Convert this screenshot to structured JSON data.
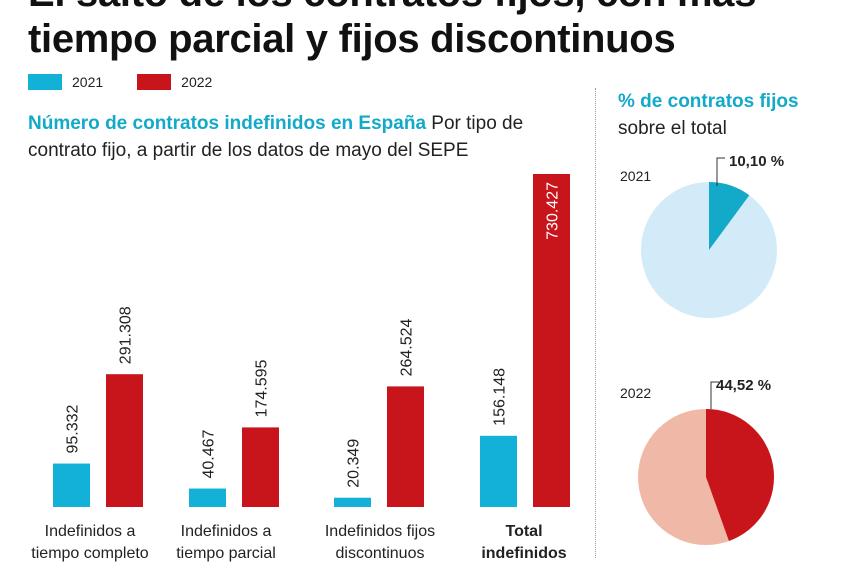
{
  "title": "El salto de los contratos fijos, con más tiempo parcial y fijos discontinuos",
  "title_line1": "El salto de los contratos fijos, con más",
  "title_line2": "tiempo parcial y fijos discontinuos",
  "colors": {
    "y2021": "#13b0d8",
    "y2022": "#c8151b",
    "pie2021_bg": "#d3ebf8",
    "pie2022_bg": "#f0b9a7",
    "accent": "#13a9c9"
  },
  "chart_data": [
    {
      "type": "bar",
      "title": "Número de contratos indefinidos en España",
      "subtitle": "Por tipo de contrato fijo, a partir de los datos de mayo del SEPE",
      "categories": [
        "Indefinidos a tiempo completo",
        "Indefinidos a tiempo parcial",
        "Indefinidos fijos discontinuos",
        "Total indefinidos"
      ],
      "category_lines": [
        [
          "Indefinidos a",
          "tiempo completo"
        ],
        [
          "Indefinidos a",
          "tiempo parcial"
        ],
        [
          "Indefinidos fijos",
          "discontinuos"
        ],
        [
          "Total",
          "indefinidos"
        ]
      ],
      "series": [
        {
          "name": "2021",
          "values": [
            95332,
            40467,
            20349,
            156148
          ],
          "labels": [
            "95.332",
            "40.467",
            "20.349",
            "156.148"
          ]
        },
        {
          "name": "2022",
          "values": [
            291308,
            174595,
            264524,
            730427
          ],
          "labels": [
            "291.308",
            "174.595",
            "264.524",
            "730.427"
          ]
        }
      ],
      "ylim": [
        0,
        730427
      ]
    },
    {
      "type": "pie",
      "title": "% de contratos fijos",
      "title_suffix": "sobre el total",
      "pies": [
        {
          "name": "2021",
          "value": 10.1,
          "label": "10,10 %"
        },
        {
          "name": "2022",
          "value": 44.52,
          "label": "44,52 %"
        }
      ]
    }
  ]
}
